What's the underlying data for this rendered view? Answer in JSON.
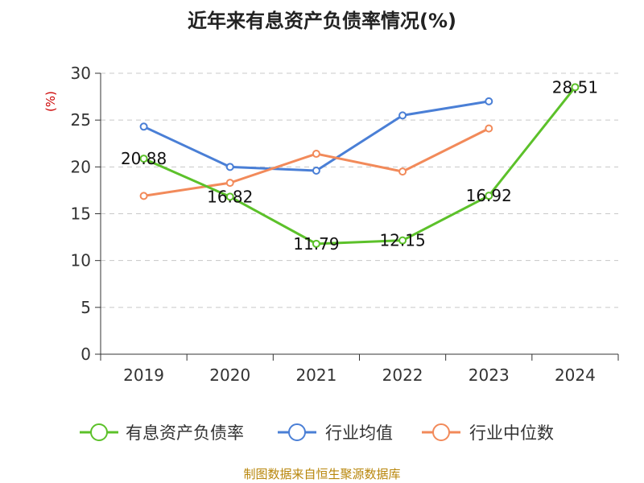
{
  "chart_data": {
    "type": "line",
    "title": "近年来有息资产负债率情况(%)",
    "ylabel": "(%)",
    "xlabel": "",
    "categories": [
      "2019",
      "2020",
      "2021",
      "2022",
      "2023",
      "2024"
    ],
    "ylim": [
      0,
      30
    ],
    "yticks": [
      0,
      5,
      10,
      15,
      20,
      25,
      30
    ],
    "grid": true,
    "legend_position": "bottom",
    "series": [
      {
        "name": "有息资产负债率",
        "color": "#5cc12a",
        "values": [
          20.88,
          16.82,
          11.79,
          12.15,
          16.92,
          28.51
        ],
        "labels": [
          "20.88",
          "16.82",
          "11.79",
          "12.15",
          "16.92",
          "28.51"
        ]
      },
      {
        "name": "行业均值",
        "color": "#4a7fd6",
        "values": [
          24.3,
          20.0,
          19.6,
          25.5,
          27.0,
          null
        ]
      },
      {
        "name": "行业中位数",
        "color": "#f28a5a",
        "values": [
          16.9,
          18.3,
          21.4,
          19.5,
          24.1,
          null
        ]
      }
    ],
    "source": "制图数据来自恒生聚源数据库"
  }
}
